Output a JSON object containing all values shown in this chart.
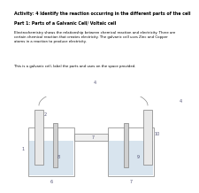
{
  "title_line1": "Activity: 4 Identify the reaction occurring in the different parts of the cell",
  "title_line2": "Part 1: Parts of a Galvanic Cell/ Voltaic cell",
  "body_text": "Electrochemistry shows the relationship between chemical reaction and electricity. There are\ncertain chemical reaction that creates electricity. The galvanic cell uses Zinc and Copper\natoms in a reaction to produce electricity.",
  "instruction": "This is a galvanic cell, label the parts and uses on the space provided.",
  "bg_color": "#ffffff",
  "divider_color": "#111111",
  "liquid_fill": "#d8e4ee",
  "electrode_fill": "#e8e8e8",
  "text_color": "#000000",
  "label_color": "#555577",
  "diagram_bg": "#f5f5f5",
  "lw": 0.5
}
